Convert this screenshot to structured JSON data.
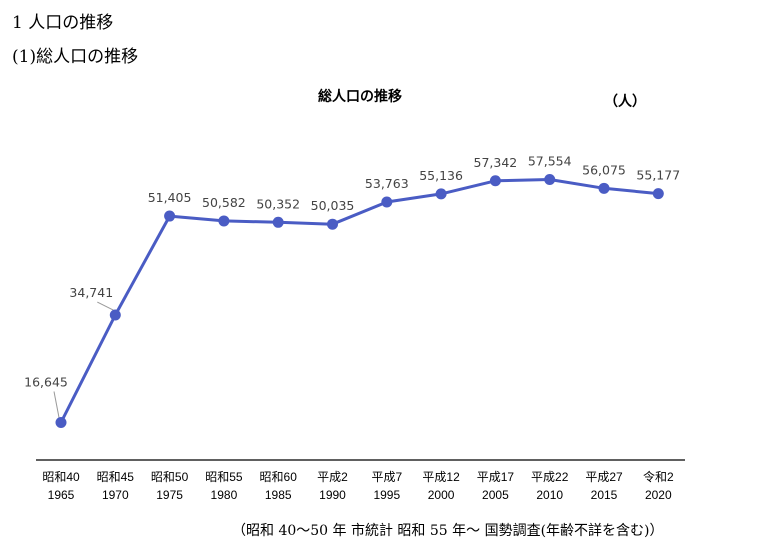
{
  "headings": {
    "section": "1 人口の推移",
    "subsection": "(1)総人口の推移"
  },
  "source_note": "（昭和 40～50 年 市統計 昭和 55 年～ 国勢調査(年齢不詳を含む)）",
  "colors": {
    "line": "#4a5cc4",
    "marker": "#4a5cc4",
    "axis": "#000000",
    "label": "#444444"
  },
  "chart_data": {
    "type": "line",
    "title": "総人口の推移",
    "unit": "（人）",
    "categories": [
      [
        "昭和40",
        "1965"
      ],
      [
        "昭和45",
        "1970"
      ],
      [
        "昭和50",
        "1975"
      ],
      [
        "昭和55",
        "1980"
      ],
      [
        "昭和60",
        "1985"
      ],
      [
        "平成2",
        "1990"
      ],
      [
        "平成7",
        "1995"
      ],
      [
        "平成12",
        "2000"
      ],
      [
        "平成17",
        "2005"
      ],
      [
        "平成22",
        "2010"
      ],
      [
        "平成27",
        "2015"
      ],
      [
        "令和2",
        "2020"
      ]
    ],
    "values": [
      16645,
      34741,
      51405,
      50582,
      50352,
      50035,
      53763,
      55136,
      57342,
      57554,
      56075,
      55177
    ],
    "data_labels": [
      "16,645",
      "34,741",
      "51,405",
      "50,582",
      "50,352",
      "50,035",
      "53,763",
      "55,136",
      "57,342",
      "57,554",
      "56,075",
      "55,177"
    ],
    "ylim": [
      10000,
      60000
    ],
    "grid": false,
    "legend": false,
    "y_axis_shown": false
  }
}
